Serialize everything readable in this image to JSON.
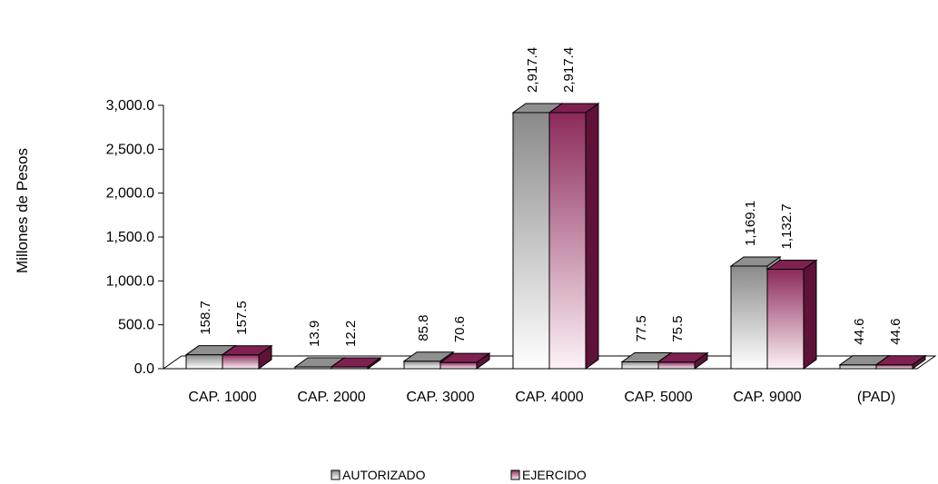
{
  "chart_data": {
    "type": "bar",
    "ylabel": "Millones de Pesos",
    "ylim": [
      0,
      3000
    ],
    "yticks": [
      "0.0",
      "500.0",
      "1,000.0",
      "1,500.0",
      "2,000.0",
      "2,500.0",
      "3,000.0"
    ],
    "categories": [
      "CAP. 1000",
      "CAP. 2000",
      "CAP. 3000",
      "CAP. 4000",
      "CAP. 5000",
      "CAP. 9000",
      "(PAD)"
    ],
    "series": [
      {
        "name": "AUTORIZADO",
        "values": [
          158.7,
          13.9,
          85.8,
          2917.4,
          77.5,
          1169.1,
          44.6
        ],
        "labels": [
          "158.7",
          "13.9",
          "85.8",
          "2,917.4",
          "77.5",
          "1,169.1",
          "44.6"
        ],
        "color": "#9a9a9a"
      },
      {
        "name": "EJERCIDO",
        "values": [
          157.5,
          12.2,
          70.6,
          2917.4,
          75.5,
          1132.7,
          44.6
        ],
        "labels": [
          "157.5",
          "12.2",
          "70.6",
          "2,917.4",
          "75.5",
          "1,132.7",
          "44.6"
        ],
        "color": "#8c2a5a"
      }
    ],
    "legend_position": "bottom-center",
    "grid": false
  }
}
